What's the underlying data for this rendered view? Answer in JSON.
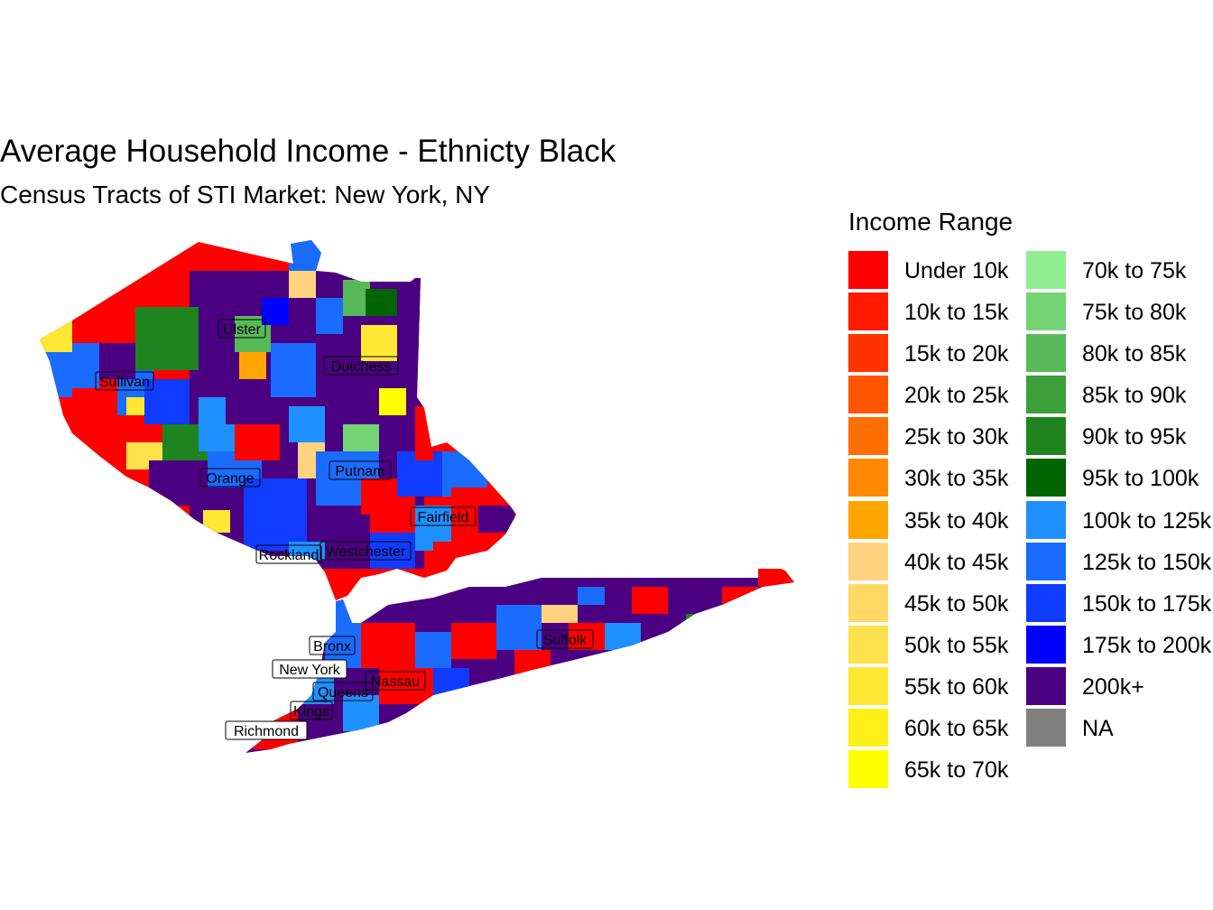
{
  "title": "Average Household Income - Ethnicty Black",
  "subtitle": "Census Tracts of STI Market: New York, NY",
  "legend": {
    "title": "Income Range",
    "items": [
      {
        "label": "Under 10k",
        "color": "#ff0000"
      },
      {
        "label": "10k to 15k",
        "color": "#ff1a00"
      },
      {
        "label": "15k to 20k",
        "color": "#ff3300"
      },
      {
        "label": "20k to 25k",
        "color": "#ff5500"
      },
      {
        "label": "25k to 30k",
        "color": "#ff6e00"
      },
      {
        "label": "30k to 35k",
        "color": "#ff8800"
      },
      {
        "label": "35k to 40k",
        "color": "#ffa500"
      },
      {
        "label": "40k to 45k",
        "color": "#ffd27f"
      },
      {
        "label": "45k to 50k",
        "color": "#ffd966"
      },
      {
        "label": "50k to 55k",
        "color": "#ffe14d"
      },
      {
        "label": "55k to 60k",
        "color": "#ffe833"
      },
      {
        "label": "60k to 65k",
        "color": "#fff01a"
      },
      {
        "label": "65k to 70k",
        "color": "#ffff00"
      },
      {
        "label": "70k to 75k",
        "color": "#90ee90"
      },
      {
        "label": "75k to 80k",
        "color": "#74d474"
      },
      {
        "label": "80k to 85k",
        "color": "#58b958"
      },
      {
        "label": "85k to 90k",
        "color": "#3c9f3c"
      },
      {
        "label": "90k to 95k",
        "color": "#1f841f"
      },
      {
        "label": "95k to 100k",
        "color": "#006400"
      },
      {
        "label": "100k to 125k",
        "color": "#1e90ff"
      },
      {
        "label": "125k to 150k",
        "color": "#1a6cff"
      },
      {
        "label": "150k to 175k",
        "color": "#0f3cff"
      },
      {
        "label": "175k to 200k",
        "color": "#0000ff"
      },
      {
        "label": "200k+",
        "color": "#4b0082"
      },
      {
        "label": "NA",
        "color": "#808080"
      }
    ]
  },
  "counties": [
    "Ulster",
    "Sullivan",
    "Dutchess",
    "Orange",
    "Putnam",
    "Fairfield",
    "Rockland",
    "Westchester",
    "Suffolk",
    "Bronx",
    "New York",
    "Nassau",
    "Queens",
    "Kings",
    "Richmond"
  ]
}
